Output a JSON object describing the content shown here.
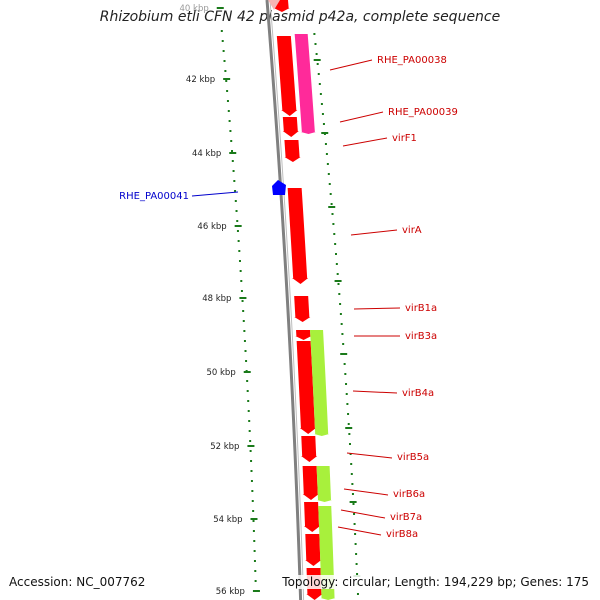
{
  "title": "Rhizobium etli CFN 42 plasmid p42a, complete sequence",
  "accession_text": "Accession: NC_007762",
  "summary_text": "Topology: circular; Length: 194,229 bp; Genes: 175",
  "colors": {
    "backbone": "#808080",
    "forward_strand": "#ff0000",
    "reverse_strand_pink": "#ff2a9a",
    "reverse_strand_green": "#a8f03c",
    "reverse_marker": "#0000ff",
    "gene_label": "#cc0000",
    "reverse_label": "#0000cc",
    "tick": "#1a7a1a"
  },
  "scale_labels": [
    "40 kbp",
    "42 kbp",
    "44 kbp",
    "46 kbp",
    "48 kbp",
    "50 kbp",
    "52 kbp",
    "54 kbp",
    "56 kbp"
  ],
  "gene_labels": [
    {
      "text": "RHE_PA00038",
      "side": "right"
    },
    {
      "text": "RHE_PA00039",
      "side": "right"
    },
    {
      "text": "virF1",
      "side": "right"
    },
    {
      "text": "RHE_PA00041",
      "side": "left"
    },
    {
      "text": "virA",
      "side": "right"
    },
    {
      "text": "virB1a",
      "side": "right"
    },
    {
      "text": "virB3a",
      "side": "right"
    },
    {
      "text": "virB4a",
      "side": "right"
    },
    {
      "text": "virB5a",
      "side": "right"
    },
    {
      "text": "virB6a",
      "side": "right"
    },
    {
      "text": "virB7a",
      "side": "right"
    },
    {
      "text": "virB8a",
      "side": "right"
    }
  ]
}
